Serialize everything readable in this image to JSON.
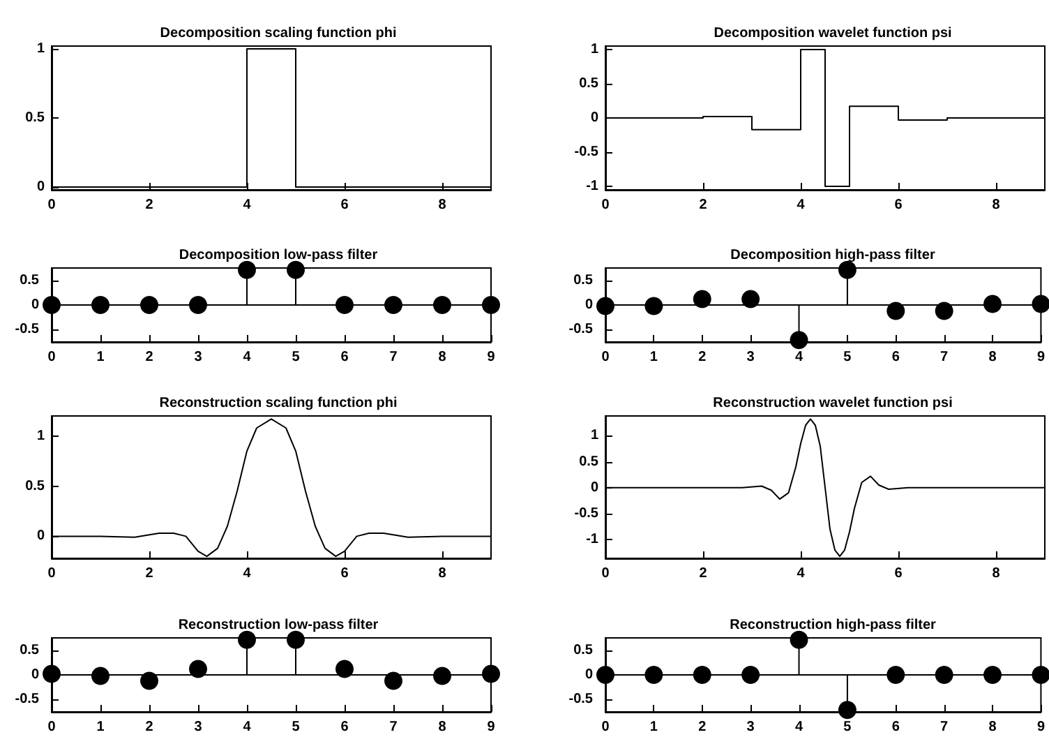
{
  "chart_data": [
    {
      "type": "step",
      "title": "Decomposition scaling function phi",
      "color": "#000000",
      "x": [
        0,
        4,
        5,
        9
      ],
      "values": [
        0,
        1,
        0,
        0
      ],
      "xlim": [
        0,
        9
      ],
      "xticks": [
        0,
        2,
        4,
        6,
        8
      ],
      "ylim": [
        -0.02,
        1.02
      ],
      "yticks": [
        0,
        0.5,
        1
      ]
    },
    {
      "type": "step",
      "title": "Decomposition wavelet function psi",
      "color": "#000000",
      "x": [
        0,
        2,
        3,
        4,
        4.5,
        5,
        6,
        7,
        9
      ],
      "values": [
        0,
        0.02,
        -0.17,
        1,
        -1,
        0.17,
        -0.03,
        0,
        0
      ],
      "xlim": [
        0,
        9
      ],
      "xticks": [
        0,
        2,
        4,
        6,
        8
      ],
      "ylim": [
        -1.05,
        1.05
      ],
      "yticks": [
        -1,
        -0.5,
        0,
        0.5,
        1
      ]
    },
    {
      "type": "lollipop",
      "title": "Decomposition low-pass filter",
      "color": "#000000",
      "marker": "circle",
      "x": [
        0,
        1,
        2,
        3,
        4,
        5,
        6,
        7,
        8,
        9
      ],
      "values": [
        0,
        0,
        0,
        0,
        0.71,
        0.71,
        0,
        0,
        0,
        0
      ],
      "xlim": [
        0,
        9
      ],
      "xticks": [
        0,
        1,
        2,
        3,
        4,
        5,
        6,
        7,
        8,
        9
      ],
      "ylim": [
        -0.75,
        0.75
      ],
      "yticks": [
        -0.5,
        0,
        0.5
      ]
    },
    {
      "type": "lollipop",
      "title": "Decomposition high-pass filter",
      "color": "#000000",
      "marker": "circle",
      "x": [
        0,
        1,
        2,
        3,
        4,
        5,
        6,
        7,
        8,
        9
      ],
      "values": [
        -0.02,
        -0.02,
        0.12,
        0.12,
        -0.71,
        0.71,
        -0.12,
        -0.12,
        0.02,
        0.02
      ],
      "xlim": [
        0,
        9
      ],
      "xticks": [
        0,
        1,
        2,
        3,
        4,
        5,
        6,
        7,
        8,
        9
      ],
      "ylim": [
        -0.75,
        0.75
      ],
      "yticks": [
        -0.5,
        0,
        0.5
      ]
    },
    {
      "type": "line",
      "title": "Reconstruction scaling function phi",
      "color": "#000000",
      "x": [
        0,
        1,
        1.7,
        2.2,
        2.5,
        2.75,
        3,
        3.18,
        3.4,
        3.6,
        3.8,
        4,
        4.2,
        4.5,
        4.8,
        5,
        5.2,
        5.4,
        5.6,
        5.82,
        6,
        6.25,
        6.5,
        6.8,
        7.3,
        8,
        9
      ],
      "values": [
        0,
        0,
        -0.01,
        0.03,
        0.03,
        0,
        -0.15,
        -0.2,
        -0.12,
        0.1,
        0.45,
        0.85,
        1.08,
        1.17,
        1.08,
        0.85,
        0.45,
        0.1,
        -0.12,
        -0.2,
        -0.15,
        0,
        0.03,
        0.03,
        -0.01,
        0,
        0
      ],
      "xlim": [
        0,
        9
      ],
      "xticks": [
        0,
        2,
        4,
        6,
        8
      ],
      "ylim": [
        -0.22,
        1.2
      ],
      "yticks": [
        0,
        0.5,
        1
      ]
    },
    {
      "type": "line",
      "title": "Reconstruction wavelet function psi",
      "color": "#000000",
      "x": [
        0,
        2.8,
        3.2,
        3.4,
        3.57,
        3.75,
        3.9,
        4,
        4.1,
        4.2,
        4.3,
        4.4,
        4.5,
        4.6,
        4.7,
        4.8,
        4.9,
        5,
        5.1,
        5.25,
        5.43,
        5.6,
        5.8,
        6.2,
        9
      ],
      "values": [
        0,
        0,
        0.03,
        -0.05,
        -0.22,
        -0.1,
        0.4,
        0.85,
        1.2,
        1.32,
        1.2,
        0.8,
        0,
        -0.8,
        -1.2,
        -1.32,
        -1.2,
        -0.85,
        -0.4,
        0.1,
        0.22,
        0.05,
        -0.03,
        0,
        0
      ],
      "xlim": [
        0,
        9
      ],
      "xticks": [
        0,
        2,
        4,
        6,
        8
      ],
      "ylim": [
        -1.36,
        1.38
      ],
      "yticks": [
        -1,
        -0.5,
        0,
        0.5,
        1
      ]
    },
    {
      "type": "lollipop",
      "title": "Reconstruction low-pass filter",
      "color": "#000000",
      "marker": "circle",
      "x": [
        0,
        1,
        2,
        3,
        4,
        5,
        6,
        7,
        8,
        9
      ],
      "values": [
        0.02,
        -0.02,
        -0.12,
        0.12,
        0.71,
        0.71,
        0.12,
        -0.12,
        -0.02,
        0.02
      ],
      "xlim": [
        0,
        9
      ],
      "xticks": [
        0,
        1,
        2,
        3,
        4,
        5,
        6,
        7,
        8,
        9
      ],
      "ylim": [
        -0.75,
        0.75
      ],
      "yticks": [
        -0.5,
        0,
        0.5
      ]
    },
    {
      "type": "lollipop",
      "title": "Reconstruction high-pass filter",
      "color": "#000000",
      "marker": "circle",
      "x": [
        0,
        1,
        2,
        3,
        4,
        5,
        6,
        7,
        8,
        9
      ],
      "values": [
        0,
        0,
        0,
        0,
        0.71,
        -0.71,
        0,
        0,
        0,
        0
      ],
      "xlim": [
        0,
        9
      ],
      "xticks": [
        0,
        1,
        2,
        3,
        4,
        5,
        6,
        7,
        8,
        9
      ],
      "ylim": [
        -0.75,
        0.75
      ],
      "yticks": [
        -0.5,
        0,
        0.5
      ]
    }
  ]
}
